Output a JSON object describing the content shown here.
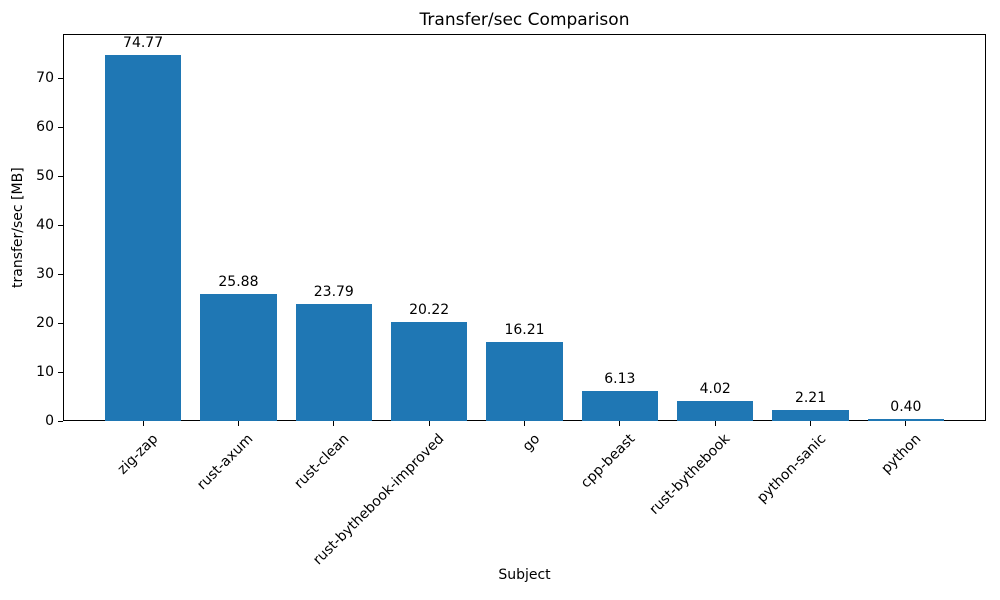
{
  "chart_data": {
    "type": "bar",
    "title": "Transfer/sec Comparison",
    "xlabel": "Subject",
    "ylabel": "transfer/sec [MB]",
    "categories": [
      "zig-zap",
      "rust-axum",
      "rust-clean",
      "rust-bythebook-improved",
      "go",
      "cpp-beast",
      "rust-bythebook",
      "python-sanic",
      "python"
    ],
    "values": [
      74.77,
      25.88,
      23.79,
      20.22,
      16.21,
      6.13,
      4.02,
      2.21,
      0.4
    ],
    "bar_labels": [
      "74.77",
      "25.88",
      "23.79",
      "20.22",
      "16.21",
      "6.13",
      "4.02",
      "2.21",
      "0.40"
    ],
    "ylim": [
      0,
      79
    ],
    "yticks": [
      0,
      10,
      20,
      30,
      40,
      50,
      60,
      70
    ],
    "xtick_rotation_deg": 45,
    "bar_color": "#1f77b4",
    "spine_color": "#000000",
    "text_color": "#000000",
    "background_color": "#ffffff",
    "grid": false,
    "legend": false
  }
}
